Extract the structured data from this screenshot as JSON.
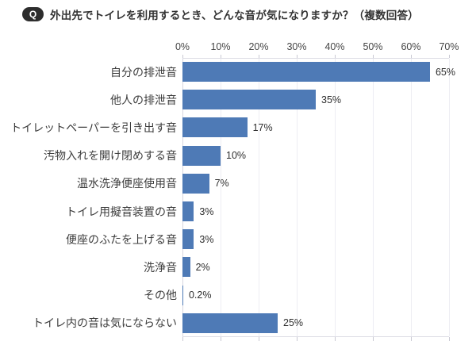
{
  "header": {
    "badge": "Q",
    "title": "外出先でトイレを利用するとき、どんな音が気になりますか？（複数回答）"
  },
  "chart_data": {
    "type": "bar",
    "orientation": "horizontal",
    "title": "外出先でトイレを利用するとき、どんな音が気になりますか？（複数回答）",
    "categories": [
      "自分の排泄音",
      "他人の排泄音",
      "トイレットペーパーを引き出す音",
      "汚物入れを開け閉めする音",
      "温水洗浄便座使用音",
      "トイレ用擬音装置の音",
      "便座のふたを上げる音",
      "洗浄音",
      "その他",
      "トイレ内の音は気にならない"
    ],
    "values": [
      65,
      35,
      17,
      10,
      7,
      3,
      3,
      2,
      0.2,
      25
    ],
    "value_labels": [
      "65%",
      "35%",
      "17%",
      "10%",
      "7%",
      "3%",
      "3%",
      "2%",
      "0.2%",
      "25%"
    ],
    "x_ticks": [
      "0%",
      "10%",
      "20%",
      "30%",
      "40%",
      "50%",
      "60%",
      "70%"
    ],
    "xlabel": "",
    "ylabel": "",
    "xlim": [
      0,
      70
    ],
    "grid": true,
    "legend": false,
    "bar_color": "#4e7ab6"
  }
}
